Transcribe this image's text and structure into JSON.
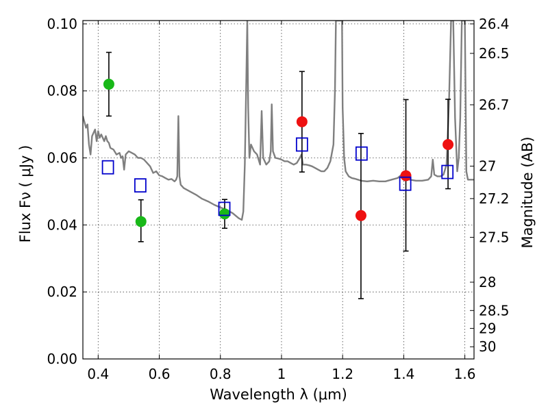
{
  "chart_data": {
    "type": "scatter",
    "xlabel": "Wavelength  λ (μm)",
    "ylabel": "Flux  Fν  ( μJy )",
    "y2label": "Magnitude (AB)",
    "xlim": [
      0.35,
      1.63
    ],
    "ylim": [
      0.0,
      0.101
    ],
    "x_ticks": [
      0.4,
      0.6,
      0.8,
      1.0,
      1.2,
      1.4,
      1.6
    ],
    "x_tick_labels": [
      "0.4",
      "0.6",
      "0.8",
      "1",
      "1.2",
      "1.4",
      "1.6"
    ],
    "y_ticks": [
      0.0,
      0.02,
      0.04,
      0.06,
      0.08,
      0.1
    ],
    "y_tick_labels": [
      "0.00",
      "0.02",
      "0.04",
      "0.06",
      "0.08",
      "0.10"
    ],
    "mag_ticks": [
      26.4,
      26.5,
      26.7,
      27,
      27.2,
      27.5,
      28,
      28.5,
      29,
      30
    ],
    "mag_tick_labels": [
      "26.4",
      "26.5",
      "26.7",
      "27",
      "27.2",
      "27.5",
      "28",
      "28.5",
      "29",
      "30"
    ],
    "grid": true,
    "colors": {
      "green": "#18b818",
      "red": "#ee1111",
      "model": "#0000cc",
      "spectrum": "#7f7f7f"
    },
    "series": [
      {
        "marker": "circle",
        "color": "green",
        "points": [
          {
            "x": 0.435,
            "y": 0.082,
            "err_lo": 0.0095,
            "err_hi": 0.0095
          },
          {
            "x": 0.54,
            "y": 0.041,
            "err_lo": 0.006,
            "err_hi": 0.0065
          },
          {
            "x": 0.814,
            "y": 0.0433,
            "err_lo": 0.0043,
            "err_hi": 0.0043
          }
        ]
      },
      {
        "marker": "circle",
        "color": "red",
        "points": [
          {
            "x": 1.067,
            "y": 0.0708,
            "err_lo": 0.015,
            "err_hi": 0.015
          },
          {
            "x": 1.26,
            "y": 0.0428,
            "err_lo": 0.0248,
            "err_hi": 0.0245
          },
          {
            "x": 1.407,
            "y": 0.0547,
            "err_lo": 0.0225,
            "err_hi": 0.0227
          },
          {
            "x": 1.545,
            "y": 0.064,
            "err_lo": 0.0132,
            "err_hi": 0.0135
          }
        ]
      },
      {
        "marker": "open-square",
        "color": "model",
        "points": [
          {
            "x": 0.432,
            "y": 0.0572
          },
          {
            "x": 0.538,
            "y": 0.0518
          },
          {
            "x": 0.813,
            "y": 0.0448
          },
          {
            "x": 1.067,
            "y": 0.064
          },
          {
            "x": 1.262,
            "y": 0.0613
          },
          {
            "x": 1.405,
            "y": 0.0523
          },
          {
            "x": 1.543,
            "y": 0.0558
          }
        ]
      }
    ],
    "spectrum": [
      [
        0.35,
        0.0725
      ],
      [
        0.36,
        0.069
      ],
      [
        0.365,
        0.07
      ],
      [
        0.37,
        0.064
      ],
      [
        0.375,
        0.061
      ],
      [
        0.38,
        0.0665
      ],
      [
        0.39,
        0.0685
      ],
      [
        0.395,
        0.065
      ],
      [
        0.4,
        0.068
      ],
      [
        0.405,
        0.066
      ],
      [
        0.41,
        0.067
      ],
      [
        0.42,
        0.065
      ],
      [
        0.425,
        0.0665
      ],
      [
        0.43,
        0.065
      ],
      [
        0.435,
        0.0645
      ],
      [
        0.44,
        0.063
      ],
      [
        0.45,
        0.0625
      ],
      [
        0.46,
        0.061
      ],
      [
        0.47,
        0.0615
      ],
      [
        0.475,
        0.06
      ],
      [
        0.48,
        0.0605
      ],
      [
        0.485,
        0.0565
      ],
      [
        0.49,
        0.061
      ],
      [
        0.5,
        0.062
      ],
      [
        0.51,
        0.0615
      ],
      [
        0.52,
        0.061
      ],
      [
        0.53,
        0.06
      ],
      [
        0.54,
        0.06
      ],
      [
        0.55,
        0.0595
      ],
      [
        0.56,
        0.0585
      ],
      [
        0.57,
        0.0575
      ],
      [
        0.58,
        0.0555
      ],
      [
        0.59,
        0.056
      ],
      [
        0.6,
        0.0548
      ],
      [
        0.61,
        0.0545
      ],
      [
        0.62,
        0.054
      ],
      [
        0.63,
        0.0535
      ],
      [
        0.64,
        0.0537
      ],
      [
        0.65,
        0.053
      ],
      [
        0.655,
        0.0535
      ],
      [
        0.659,
        0.0545
      ],
      [
        0.6625,
        0.0725
      ],
      [
        0.666,
        0.0545
      ],
      [
        0.67,
        0.052
      ],
      [
        0.68,
        0.051
      ],
      [
        0.7,
        0.05
      ],
      [
        0.72,
        0.049
      ],
      [
        0.74,
        0.0478
      ],
      [
        0.76,
        0.047
      ],
      [
        0.78,
        0.046
      ],
      [
        0.8,
        0.0452
      ],
      [
        0.82,
        0.0445
      ],
      [
        0.84,
        0.0435
      ],
      [
        0.86,
        0.042
      ],
      [
        0.87,
        0.0415
      ],
      [
        0.875,
        0.044
      ],
      [
        0.88,
        0.058
      ],
      [
        0.885,
        0.085
      ],
      [
        0.888,
        0.101
      ],
      [
        0.891,
        0.075
      ],
      [
        0.895,
        0.06
      ],
      [
        0.9,
        0.064
      ],
      [
        0.91,
        0.062
      ],
      [
        0.92,
        0.061
      ],
      [
        0.93,
        0.058
      ],
      [
        0.935,
        0.074
      ],
      [
        0.94,
        0.06
      ],
      [
        0.95,
        0.058
      ],
      [
        0.96,
        0.059
      ],
      [
        0.965,
        0.062
      ],
      [
        0.968,
        0.076
      ],
      [
        0.972,
        0.062
      ],
      [
        0.98,
        0.06
      ],
      [
        0.99,
        0.0598
      ],
      [
        1.0,
        0.0595
      ],
      [
        1.01,
        0.059
      ],
      [
        1.02,
        0.059
      ],
      [
        1.03,
        0.0585
      ],
      [
        1.04,
        0.058
      ],
      [
        1.05,
        0.0585
      ],
      [
        1.06,
        0.06
      ],
      [
        1.065,
        0.061
      ],
      [
        1.07,
        0.058
      ],
      [
        1.08,
        0.058
      ],
      [
        1.09,
        0.0578
      ],
      [
        1.1,
        0.0575
      ],
      [
        1.11,
        0.057
      ],
      [
        1.12,
        0.0565
      ],
      [
        1.13,
        0.056
      ],
      [
        1.14,
        0.056
      ],
      [
        1.15,
        0.057
      ],
      [
        1.16,
        0.059
      ],
      [
        1.17,
        0.064
      ],
      [
        1.175,
        0.08
      ],
      [
        1.178,
        0.101
      ],
      [
        1.198,
        0.101
      ],
      [
        1.2,
        0.075
      ],
      [
        1.205,
        0.06
      ],
      [
        1.21,
        0.056
      ],
      [
        1.22,
        0.0545
      ],
      [
        1.23,
        0.054
      ],
      [
        1.24,
        0.0538
      ],
      [
        1.25,
        0.0535
      ],
      [
        1.26,
        0.0532
      ],
      [
        1.28,
        0.053
      ],
      [
        1.3,
        0.0532
      ],
      [
        1.32,
        0.053
      ],
      [
        1.34,
        0.053
      ],
      [
        1.36,
        0.0535
      ],
      [
        1.38,
        0.054
      ],
      [
        1.4,
        0.0555
      ],
      [
        1.41,
        0.0535
      ],
      [
        1.42,
        0.0535
      ],
      [
        1.44,
        0.0532
      ],
      [
        1.46,
        0.0532
      ],
      [
        1.48,
        0.0535
      ],
      [
        1.49,
        0.0545
      ],
      [
        1.495,
        0.0595
      ],
      [
        1.5,
        0.055
      ],
      [
        1.51,
        0.0545
      ],
      [
        1.52,
        0.0545
      ],
      [
        1.53,
        0.055
      ],
      [
        1.54,
        0.058
      ],
      [
        1.548,
        0.076
      ],
      [
        1.555,
        0.101
      ],
      [
        1.562,
        0.101
      ],
      [
        1.568,
        0.072
      ],
      [
        1.575,
        0.056
      ],
      [
        1.58,
        0.06
      ],
      [
        1.585,
        0.072
      ],
      [
        1.59,
        0.101
      ],
      [
        1.6,
        0.101
      ],
      [
        1.605,
        0.056
      ],
      [
        1.61,
        0.0535
      ],
      [
        1.63,
        0.0535
      ]
    ]
  }
}
